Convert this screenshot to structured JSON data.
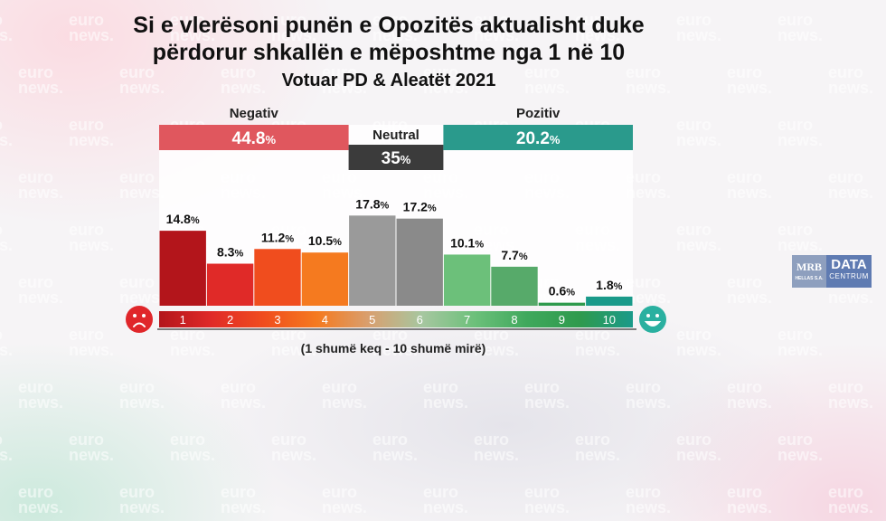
{
  "title_line1": "Si e vlerësoni punën e Opozitës aktualisht duke",
  "title_line2": "përdorur shkallën e mëposhtme nga 1 në 10",
  "subtitle": "Votuar PD & Aleatët 2021",
  "scale_note": "(1 shumë keq - 10 shumë mirë)",
  "watermark": [
    "euro",
    "news."
  ],
  "logo": {
    "mrb": "MRB",
    "mrb_small": "HELLAS S.A.",
    "dc_top": "DATA",
    "dc_bottom": "CENTRUM"
  },
  "icons": {
    "left": "sad-face-icon",
    "right": "happy-face-icon"
  },
  "chart_data": {
    "type": "bar",
    "title": "Si e vlerësoni punën e Opozitës aktualisht duke përdorur shkallën e mëposhtme nga 1 në 10",
    "subtitle": "Votuar PD & Aleatët 2021",
    "xlabel": "(1 shumë keq - 10 shumë mirë)",
    "ylabel": "",
    "unit": "%",
    "categories": [
      "1",
      "2",
      "3",
      "4",
      "5",
      "6",
      "7",
      "8",
      "9",
      "10"
    ],
    "values": [
      14.8,
      8.3,
      11.2,
      10.5,
      17.8,
      17.2,
      10.1,
      7.7,
      0.6,
      1.8
    ],
    "labels": [
      "14.8",
      "8.3",
      "11.2",
      "10.5",
      "17.8",
      "17.2",
      "10.1",
      "7.7",
      "0.6",
      "1.8"
    ],
    "colors": [
      "#b3151b",
      "#e02a28",
      "#f04d1e",
      "#f57a1f",
      "#9a9a9a",
      "#8a8a8a",
      "#6cc07a",
      "#57aa6a",
      "#2f9a4d",
      "#1a9a8a"
    ],
    "ylim": [
      0,
      20
    ],
    "groups": [
      {
        "name": "Negativ",
        "value": "44.8",
        "color": "#e0575e",
        "range": [
          1,
          4
        ]
      },
      {
        "name": "Neutral",
        "value": "35",
        "color": "#3b3b3b",
        "range": [
          5,
          6
        ]
      },
      {
        "name": "Pozitiv",
        "value": "20.2",
        "color": "#2a9a8c",
        "range": [
          7,
          10
        ]
      }
    ]
  }
}
